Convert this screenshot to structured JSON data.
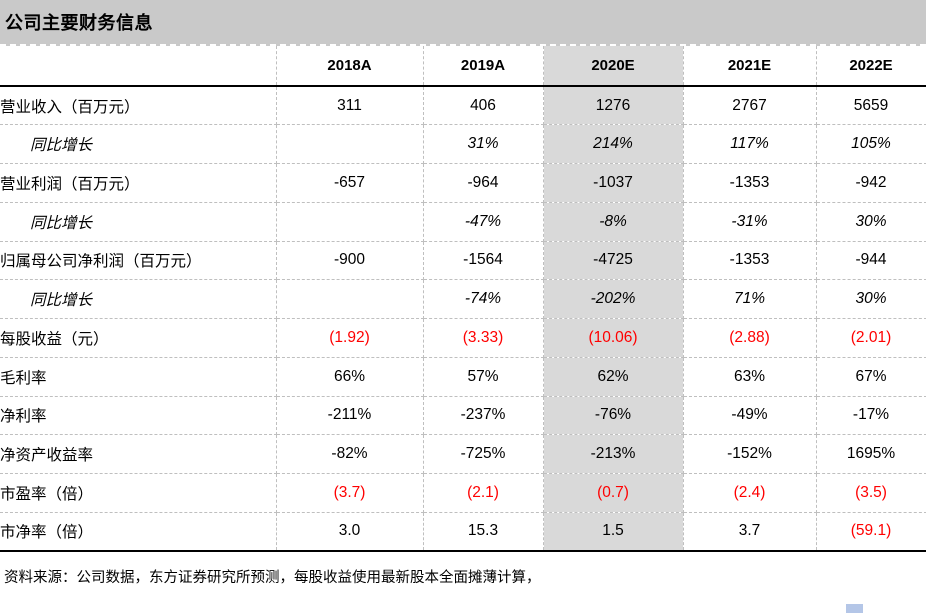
{
  "title": "公司主要财务信息",
  "colors": {
    "title_bar_bg": "#c9c9c9",
    "highlight_column_bg": "#d9d9d9",
    "grid_line": "#bfbfbf",
    "negative_value_red": "#ff0000",
    "corner_mark_blue": "#b4c6e7",
    "text": "#000000"
  },
  "chart_data": {
    "type": "table",
    "title": "公司主要财务信息",
    "columns": [
      "2018A",
      "2019A",
      "2020E",
      "2021E",
      "2022E"
    ],
    "highlight_column": "2020E",
    "rows": [
      {
        "label": "营业收入（百万元）",
        "values": [
          "311",
          "406",
          "1276",
          "2767",
          "5659"
        ]
      },
      {
        "label": "同比增长",
        "indent": true,
        "italic": true,
        "values": [
          "",
          "31%",
          "214%",
          "117%",
          "105%"
        ]
      },
      {
        "label": "营业利润（百万元）",
        "values": [
          "-657",
          "-964",
          "-1037",
          "-1353",
          "-942"
        ]
      },
      {
        "label": "同比增长",
        "indent": true,
        "italic": true,
        "values": [
          "",
          "-47%",
          "-8%",
          "-31%",
          "30%"
        ]
      },
      {
        "label": "归属母公司净利润（百万元）",
        "values": [
          "-900",
          "-1564",
          "-4725",
          "-1353",
          "-944"
        ]
      },
      {
        "label": "同比增长",
        "indent": true,
        "italic": true,
        "values": [
          "",
          "-74%",
          "-202%",
          "71%",
          "30%"
        ]
      },
      {
        "label": "每股收益（元）",
        "values": [
          "(1.92)",
          "(3.33)",
          "(10.06)",
          "(2.88)",
          "(2.01)"
        ],
        "red": [
          true,
          true,
          true,
          true,
          true
        ]
      },
      {
        "label": "毛利率",
        "values": [
          "66%",
          "57%",
          "62%",
          "63%",
          "67%"
        ]
      },
      {
        "label": "净利率",
        "values": [
          "-211%",
          "-237%",
          "-76%",
          "-49%",
          "-17%"
        ]
      },
      {
        "label": "净资产收益率",
        "values": [
          "-82%",
          "-725%",
          "-213%",
          "-152%",
          "1695%"
        ]
      },
      {
        "label": "市盈率（倍）",
        "values": [
          "(3.7)",
          "(2.1)",
          "(0.7)",
          "(2.4)",
          "(3.5)"
        ],
        "red": [
          true,
          true,
          true,
          true,
          true
        ]
      },
      {
        "label": "市净率（倍）",
        "values": [
          "3.0",
          "15.3",
          "1.5",
          "3.7",
          "(59.1)"
        ],
        "red": [
          false,
          false,
          false,
          false,
          true
        ]
      }
    ],
    "source": "资料来源：公司数据，东方证券研究所预测，每股收益使用最新股本全面摊薄计算，"
  }
}
